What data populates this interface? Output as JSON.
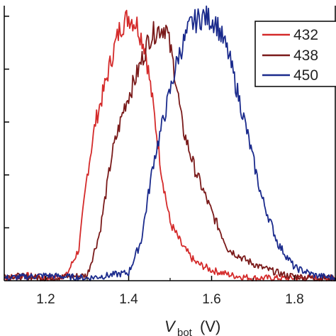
{
  "chart_data": {
    "type": "line",
    "xlabel_main": "V",
    "xlabel_sub": "bot",
    "xlabel_unit": "(V)",
    "xlim": [
      1.1,
      1.9
    ],
    "ylim": [
      0,
      1.04
    ],
    "xticks": [
      "1.2",
      "1.4",
      "1.6",
      "1.8"
    ],
    "xtick_values": [
      1.2,
      1.4,
      1.6,
      1.8
    ],
    "ytick_values": [
      0.2,
      0.4,
      0.6,
      0.8,
      1.0
    ],
    "legend_position": "top-right",
    "series": [
      {
        "name": "432",
        "color": "#d42a2a",
        "x": [
          1.1,
          1.15,
          1.2,
          1.25,
          1.28,
          1.3,
          1.32,
          1.34,
          1.36,
          1.38,
          1.4,
          1.42,
          1.44,
          1.46,
          1.48,
          1.5,
          1.53,
          1.56,
          1.6,
          1.65,
          1.7
        ],
        "y": [
          0.01,
          0.02,
          0.01,
          0.02,
          0.12,
          0.4,
          0.6,
          0.72,
          0.85,
          0.96,
          1.0,
          0.97,
          0.88,
          0.65,
          0.4,
          0.22,
          0.13,
          0.07,
          0.04,
          0.02,
          0.01
        ]
      },
      {
        "name": "438",
        "color": "#7a1a1a",
        "x": [
          1.1,
          1.2,
          1.3,
          1.33,
          1.36,
          1.39,
          1.42,
          1.45,
          1.47,
          1.49,
          1.51,
          1.53,
          1.56,
          1.6,
          1.64,
          1.68,
          1.72,
          1.78,
          1.85
        ],
        "y": [
          0.02,
          0.01,
          0.02,
          0.18,
          0.48,
          0.66,
          0.78,
          0.92,
          0.95,
          0.96,
          0.8,
          0.58,
          0.42,
          0.26,
          0.12,
          0.08,
          0.05,
          0.02,
          0.01
        ]
      },
      {
        "name": "450",
        "color": "#1a2a8c",
        "x": [
          1.1,
          1.2,
          1.3,
          1.4,
          1.43,
          1.46,
          1.49,
          1.52,
          1.55,
          1.58,
          1.61,
          1.64,
          1.68,
          1.72,
          1.76,
          1.8,
          1.85,
          1.9
        ],
        "y": [
          0.01,
          0.02,
          0.01,
          0.03,
          0.15,
          0.45,
          0.65,
          0.85,
          0.97,
          1.0,
          0.98,
          0.86,
          0.6,
          0.32,
          0.14,
          0.05,
          0.02,
          0.01
        ]
      }
    ]
  }
}
